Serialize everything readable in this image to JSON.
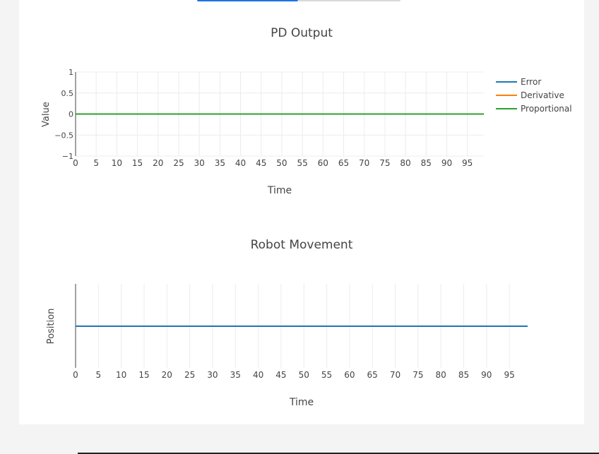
{
  "tabs": [
    {
      "state": "active",
      "color": "#1a73e8"
    },
    {
      "state": "inactive",
      "color": "#d9d9d9"
    }
  ],
  "chart_data": [
    {
      "type": "line",
      "title": "PD Output",
      "xlabel": "Time",
      "ylabel": "Value",
      "xlim": [
        0,
        99
      ],
      "ylim": [
        -1,
        1
      ],
      "x_ticks": [
        0,
        5,
        10,
        15,
        20,
        25,
        30,
        35,
        40,
        45,
        50,
        55,
        60,
        65,
        70,
        75,
        80,
        85,
        90,
        95
      ],
      "y_ticks": [
        {
          "value": 1,
          "label": "1"
        },
        {
          "value": 0.5,
          "label": "0.5"
        },
        {
          "value": 0,
          "label": "0"
        },
        {
          "value": -0.5,
          "label": "−0.5"
        },
        {
          "value": -1,
          "label": "−1"
        }
      ],
      "grid": true,
      "legend_position": "top-right",
      "series": [
        {
          "name": "Error",
          "color": "#1f77b4",
          "x": [
            0,
            99
          ],
          "y": [
            0,
            0
          ]
        },
        {
          "name": "Derivative",
          "color": "#ff7f0e",
          "x": [
            0,
            99
          ],
          "y": [
            0,
            0
          ]
        },
        {
          "name": "Proportional",
          "color": "#2ca02c",
          "x": [
            0,
            99
          ],
          "y": [
            0,
            0
          ]
        }
      ]
    },
    {
      "type": "line",
      "title": "Robot Movement",
      "xlabel": "Time",
      "ylabel": "Position",
      "xlim": [
        0,
        99
      ],
      "x_ticks": [
        0,
        5,
        10,
        15,
        20,
        25,
        30,
        35,
        40,
        45,
        50,
        55,
        60,
        65,
        70,
        75,
        80,
        85,
        90,
        95
      ],
      "grid": true,
      "series": [
        {
          "color": "#1f77b4",
          "x": [
            0,
            99
          ],
          "y": [
            0,
            0
          ]
        }
      ]
    }
  ]
}
